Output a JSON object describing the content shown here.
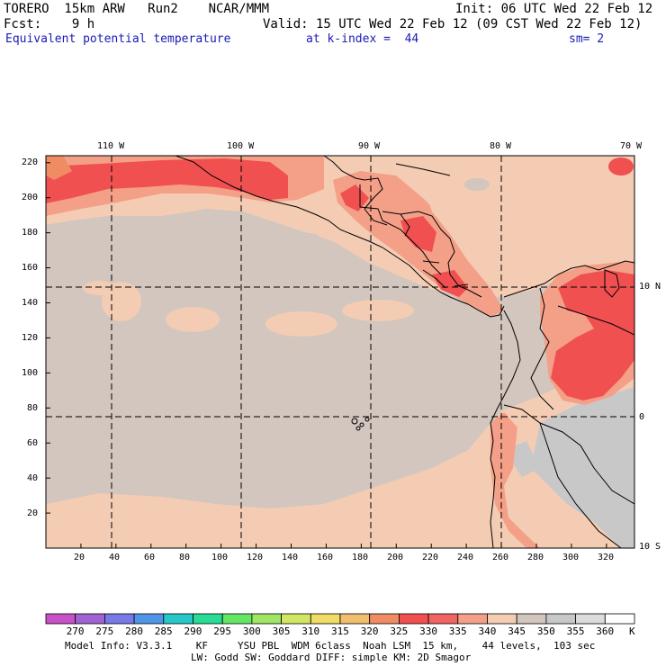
{
  "header": {
    "line1_left": "TORERO  15km ARW   Run2    NCAR/MMM",
    "line1_right": "Init: 06 UTC Wed 22 Feb 12",
    "line2_left": "Fcst:    9 h",
    "line2_right": "Valid: 15 UTC Wed 22 Feb 12 (09 CST Wed 22 Feb 12)",
    "field_name": "Equivalent potential temperature",
    "level": "at k-index =  44",
    "smoothing": "sm= 2"
  },
  "map": {
    "lon_labels": [
      "110 W",
      "100 W",
      "90 W",
      "80 W",
      "70 W"
    ],
    "lat_labels": [
      "10 N",
      "0",
      "10 S"
    ],
    "y_ticks": [
      "220",
      "200",
      "180",
      "160",
      "140",
      "120",
      "100",
      "80",
      "60",
      "40",
      "20"
    ],
    "x_ticks": [
      "20",
      "40",
      "60",
      "80",
      "100",
      "120",
      "140",
      "160",
      "180",
      "200",
      "220",
      "240",
      "260",
      "280",
      "300",
      "320"
    ],
    "grid_x_range": [
      0,
      336
    ],
    "grid_y_range": [
      0,
      224
    ]
  },
  "colorbar": {
    "levels": [
      "270",
      "275",
      "280",
      "285",
      "290",
      "295",
      "300",
      "305",
      "310",
      "315",
      "320",
      "325",
      "330",
      "335",
      "340",
      "345",
      "350",
      "355",
      "360"
    ],
    "unit": "K",
    "colors": [
      "#c850c8",
      "#a064d2",
      "#7878e6",
      "#5096e6",
      "#28c8c8",
      "#28dc96",
      "#64e664",
      "#a0e664",
      "#d2e664",
      "#f0dc64",
      "#f0be6e",
      "#f08c64",
      "#f05050",
      "#f06464",
      "#f4a088",
      "#f4ccb4",
      "#d2c6be",
      "#c8c8c8",
      "#dcdcdc",
      "#ffffff"
    ]
  },
  "model_info": {
    "line1": "Model Info: V3.3.1    KF     YSU PBL  WDM 6class  Noah LSM  15 km,    44 levels,  103 sec",
    "line2": "LW: Godd SW: Goddard DIFF: simple KM: 2D Smagor"
  },
  "colors": {
    "ocean_gray": "#d2c6be",
    "light_salmon": "#f4ccb4",
    "salmon": "#f4a088",
    "red": "#f05050",
    "light_gray": "#c8c8c8"
  }
}
